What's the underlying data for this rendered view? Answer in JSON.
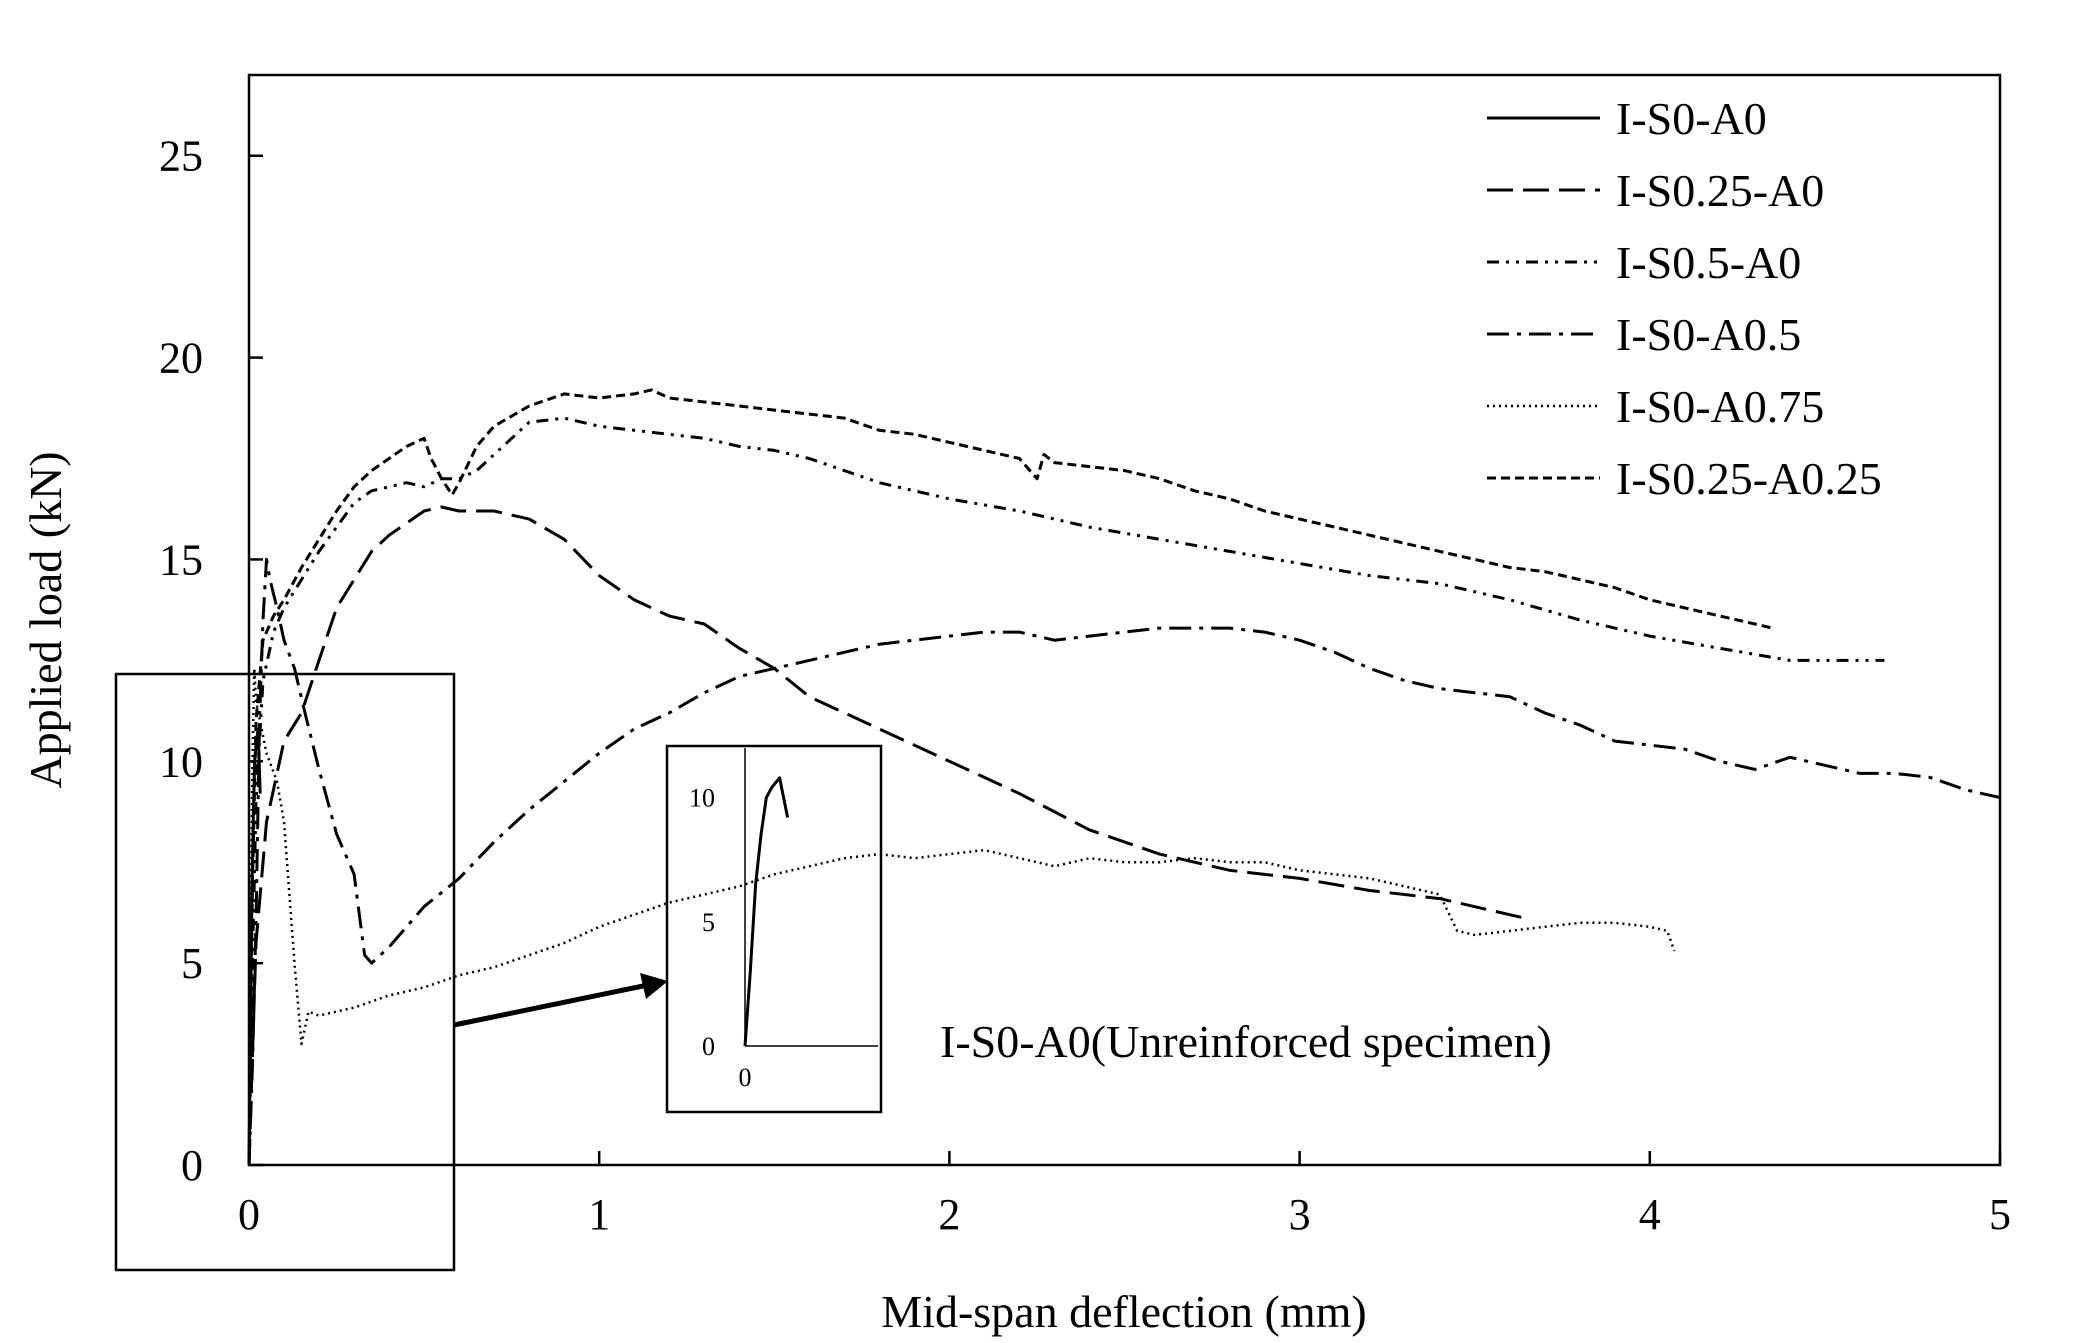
{
  "chart_data": {
    "type": "line",
    "xlabel": "Mid-span deflection (mm)",
    "ylabel": "Applied load (kN)",
    "xlim": [
      0,
      5
    ],
    "ylim": [
      0,
      27
    ],
    "xticks": [
      0,
      1,
      2,
      3,
      4,
      5
    ],
    "yticks": [
      0,
      5,
      10,
      15,
      20,
      25
    ],
    "legend_position": "top-right",
    "grid": false,
    "series": [
      {
        "name": "I-S0-A0",
        "dash": "solid",
        "x": [
          0,
          0.004,
          0.008,
          0.012,
          0.016,
          0.02,
          0.026,
          0.032
        ],
        "y": [
          0,
          3,
          6.5,
          8.5,
          10,
          10.4,
          10.8,
          9.2
        ]
      },
      {
        "name": "I-S0.25-A0",
        "dash": "long-dash",
        "x": [
          0,
          0.02,
          0.05,
          0.1,
          0.15,
          0.2,
          0.25,
          0.3,
          0.35,
          0.4,
          0.45,
          0.5,
          0.55,
          0.6,
          0.7,
          0.8,
          0.9,
          1.0,
          1.1,
          1.2,
          1.3,
          1.4,
          1.5,
          1.6,
          1.8,
          2.0,
          2.1,
          2.2,
          2.4,
          2.6,
          2.8,
          3.0,
          3.2,
          3.4,
          3.6,
          3.65
        ],
        "y": [
          0,
          5.5,
          8.5,
          10.5,
          11.2,
          12.5,
          13.8,
          14.5,
          15.2,
          15.6,
          15.9,
          16.2,
          16.3,
          16.2,
          16.2,
          16.0,
          15.5,
          14.6,
          14.0,
          13.6,
          13.4,
          12.8,
          12.3,
          11.6,
          10.8,
          10.0,
          9.6,
          9.2,
          8.3,
          7.7,
          7.3,
          7.1,
          6.8,
          6.6,
          6.2,
          6.1
        ]
      },
      {
        "name": "I-S0.5-A0",
        "dash": "dash-dot-dot",
        "x": [
          0,
          0.01,
          0.02,
          0.04,
          0.07,
          0.1,
          0.15,
          0.2,
          0.25,
          0.3,
          0.35,
          0.4,
          0.45,
          0.5,
          0.55,
          0.6,
          0.65,
          0.7,
          0.8,
          0.9,
          1.0,
          1.1,
          1.2,
          1.3,
          1.4,
          1.5,
          1.6,
          1.8,
          2.0,
          2.2,
          2.4,
          2.6,
          2.8,
          3.0,
          3.2,
          3.4,
          3.6,
          3.8,
          4.0,
          4.2,
          4.4,
          4.6,
          4.67
        ],
        "y": [
          0,
          5,
          9,
          12,
          13.2,
          13.8,
          14.5,
          15.2,
          15.8,
          16.4,
          16.7,
          16.8,
          16.9,
          16.8,
          17.0,
          17.0,
          17.2,
          17.6,
          18.4,
          18.5,
          18.3,
          18.2,
          18.1,
          18.0,
          17.8,
          17.7,
          17.5,
          16.9,
          16.5,
          16.2,
          15.8,
          15.5,
          15.2,
          14.9,
          14.6,
          14.4,
          14.0,
          13.5,
          13.1,
          12.8,
          12.5,
          12.5,
          12.5
        ]
      },
      {
        "name": "I-S0-A0.5",
        "dash": "dash-dot",
        "x": [
          0,
          0.01,
          0.02,
          0.03,
          0.04,
          0.05,
          0.06,
          0.08,
          0.1,
          0.13,
          0.16,
          0.2,
          0.25,
          0.3,
          0.33,
          0.35,
          0.4,
          0.45,
          0.5,
          0.6,
          0.7,
          0.8,
          0.9,
          1.0,
          1.1,
          1.2,
          1.3,
          1.4,
          1.5,
          1.6,
          1.7,
          1.8,
          1.9,
          2.0,
          2.1,
          2.2,
          2.3,
          2.4,
          2.5,
          2.6,
          2.7,
          2.8,
          2.9,
          3.0,
          3.1,
          3.2,
          3.3,
          3.4,
          3.5,
          3.6,
          3.7,
          3.8,
          3.9,
          4.0,
          4.1,
          4.2,
          4.3,
          4.4,
          4.5,
          4.6,
          4.7,
          4.8,
          4.9,
          5.0
        ],
        "y": [
          0,
          2.5,
          6,
          11,
          13.5,
          15,
          14.5,
          13.8,
          13,
          12.3,
          11.2,
          9.8,
          8.2,
          7.2,
          5.2,
          5.0,
          5.4,
          5.9,
          6.4,
          7.1,
          8.0,
          8.8,
          9.5,
          10.2,
          10.8,
          11.2,
          11.7,
          12.1,
          12.3,
          12.5,
          12.7,
          12.9,
          13.0,
          13.1,
          13.2,
          13.2,
          13.0,
          13.1,
          13.2,
          13.3,
          13.3,
          13.3,
          13.2,
          13.0,
          12.7,
          12.3,
          12.0,
          11.8,
          11.7,
          11.6,
          11.2,
          10.9,
          10.5,
          10.4,
          10.3,
          10.0,
          9.8,
          10.1,
          9.9,
          9.7,
          9.7,
          9.6,
          9.3,
          9.1
        ]
      },
      {
        "name": "I-S0-A0.75",
        "dash": "dotted",
        "x": [
          0,
          0.005,
          0.01,
          0.015,
          0.02,
          0.05,
          0.08,
          0.1,
          0.13,
          0.15,
          0.17,
          0.2,
          0.3,
          0.4,
          0.5,
          0.6,
          0.7,
          0.8,
          0.9,
          1.0,
          1.1,
          1.2,
          1.3,
          1.4,
          1.5,
          1.6,
          1.7,
          1.8,
          1.9,
          2.0,
          2.1,
          2.2,
          2.3,
          2.4,
          2.5,
          2.6,
          2.7,
          2.8,
          2.9,
          3.0,
          3.1,
          3.2,
          3.3,
          3.4,
          3.45,
          3.5,
          3.6,
          3.7,
          3.8,
          3.9,
          4.0,
          4.05,
          4.07
        ],
        "y": [
          0,
          6,
          10,
          12.3,
          11.5,
          10.2,
          9.5,
          8.5,
          5.0,
          3.0,
          3.8,
          3.7,
          3.9,
          4.2,
          4.4,
          4.7,
          4.9,
          5.2,
          5.5,
          5.9,
          6.2,
          6.5,
          6.7,
          6.9,
          7.2,
          7.4,
          7.6,
          7.7,
          7.6,
          7.7,
          7.8,
          7.6,
          7.4,
          7.6,
          7.5,
          7.5,
          7.6,
          7.5,
          7.5,
          7.3,
          7.2,
          7.1,
          6.9,
          6.7,
          5.8,
          5.7,
          5.8,
          5.9,
          6.0,
          6.0,
          5.9,
          5.8,
          5.3
        ]
      },
      {
        "name": "I-S0.25-A0.25",
        "dash": "short-dash",
        "x": [
          0,
          0.01,
          0.02,
          0.04,
          0.07,
          0.1,
          0.15,
          0.2,
          0.25,
          0.3,
          0.35,
          0.4,
          0.45,
          0.5,
          0.52,
          0.55,
          0.58,
          0.6,
          0.65,
          0.7,
          0.8,
          0.9,
          1.0,
          1.1,
          1.15,
          1.2,
          1.3,
          1.4,
          1.5,
          1.6,
          1.7,
          1.8,
          1.9,
          2.0,
          2.1,
          2.2,
          2.25,
          2.27,
          2.3,
          2.4,
          2.5,
          2.6,
          2.7,
          2.8,
          2.9,
          3.0,
          3.1,
          3.2,
          3.3,
          3.4,
          3.5,
          3.6,
          3.7,
          3.8,
          3.9,
          4.0,
          4.1,
          4.2,
          4.3,
          4.35
        ],
        "y": [
          0,
          7,
          11,
          13,
          13.6,
          14,
          14.8,
          15.5,
          16.2,
          16.8,
          17.2,
          17.5,
          17.8,
          18.0,
          17.5,
          17.0,
          16.6,
          16.9,
          17.8,
          18.3,
          18.8,
          19.1,
          19.0,
          19.1,
          19.2,
          19.0,
          18.9,
          18.8,
          18.7,
          18.6,
          18.5,
          18.2,
          18.1,
          17.9,
          17.7,
          17.5,
          17.0,
          17.6,
          17.4,
          17.3,
          17.2,
          17.0,
          16.7,
          16.5,
          16.2,
          16.0,
          15.8,
          15.6,
          15.4,
          15.2,
          15.0,
          14.8,
          14.7,
          14.5,
          14.3,
          14.0,
          13.8,
          13.6,
          13.4,
          13.3
        ]
      }
    ],
    "inset": {
      "xticks": [
        0
      ],
      "yticks": [
        0,
        5,
        10
      ],
      "ylim": [
        0,
        12
      ],
      "xlim": [
        0,
        0.1
      ],
      "annotation": "I-S0-A0(Unreinforced specimen)"
    }
  }
}
